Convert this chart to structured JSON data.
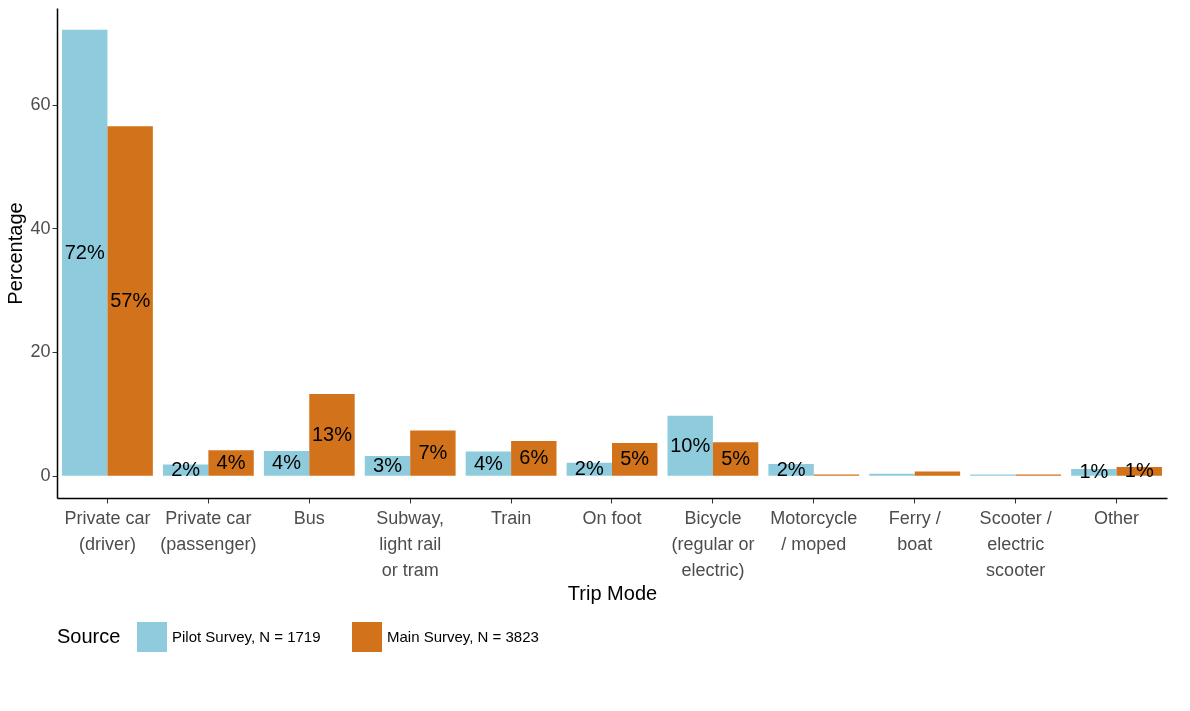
{
  "chart_data": {
    "type": "bar",
    "xlabel": "Trip Mode",
    "ylabel": "Percentage",
    "legend_title": "Source",
    "legend": "bottom",
    "grid": false,
    "categories": [
      "Private car (driver)",
      "Private car (passenger)",
      "Bus",
      "Subway, light rail or tram",
      "Train",
      "On foot",
      "Bicycle (regular or electric)",
      "Motorcycle / moped",
      "Ferry / boat",
      "Scooter / electric scooter",
      "Other"
    ],
    "ylim": [
      -3.6,
      75.6
    ],
    "yticks": [
      0,
      20,
      40,
      60
    ],
    "series": [
      {
        "name": "Pilot Survey, N = 1719",
        "color": "#8ecbdc",
        "values": [
          72.1,
          1.8,
          4.0,
          3.2,
          3.9,
          2.1,
          9.7,
          1.9,
          0.3,
          0.2,
          1.1
        ],
        "value_labels": [
          "72%",
          "2%",
          "4%",
          "3%",
          "4%",
          "2%",
          "10%",
          "2%",
          null,
          null,
          "1%"
        ]
      },
      {
        "name": "Main Survey, N = 3823",
        "color": "#d2731b",
        "values": [
          56.5,
          4.1,
          13.2,
          7.3,
          5.6,
          5.3,
          5.4,
          0.2,
          0.7,
          0.2,
          1.4
        ],
        "value_labels": [
          "57%",
          "4%",
          "13%",
          "7%",
          "6%",
          "5%",
          "5%",
          null,
          null,
          null,
          "1%"
        ]
      }
    ]
  }
}
